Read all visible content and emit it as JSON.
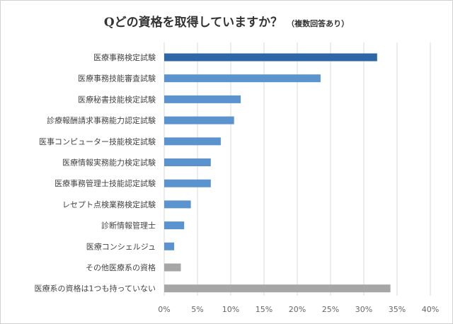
{
  "title": {
    "main": "Qどの資格を取得していますか？",
    "sub": "（複数回答あり）"
  },
  "chart_data": {
    "type": "bar",
    "orientation": "horizontal",
    "title": "Qどの資格を取得していますか？",
    "subtitle": "（複数回答あり）",
    "categories": [
      "医療事務検定試験",
      "医療事務技能審査試験",
      "医療秘書技能検定試験",
      "診療報酬請求事務能力認定試験",
      "医事コンピューター技能検定試験",
      "医療情報実務能力検定試験",
      "医療事務管理士技能認定試験",
      "レセプト点検業務検定試験",
      "診断情報管理士",
      "医療コンシェルジュ",
      "その他医療系の資格",
      "医療系の資格は1つも持っていない"
    ],
    "values": [
      32.0,
      23.5,
      11.5,
      10.5,
      8.5,
      7.0,
      7.0,
      4.0,
      3.0,
      1.5,
      2.5,
      34.0
    ],
    "value_unit": "%",
    "xlim": [
      0,
      40
    ],
    "xticks": [
      "0%",
      "5%",
      "10%",
      "15%",
      "20%",
      "25%",
      "30%",
      "35%",
      "40%"
    ],
    "xtick_values": [
      0,
      5,
      10,
      15,
      20,
      25,
      30,
      35,
      40
    ],
    "grid": "vertical",
    "legend": "none",
    "colors": {
      "highlight": "#2e67a8",
      "standard": "#5b93cf",
      "other": "#a6a6a6",
      "grid": "#d9d9d9"
    },
    "bar_color_keys": [
      "highlight",
      "standard",
      "standard",
      "standard",
      "standard",
      "standard",
      "standard",
      "standard",
      "standard",
      "standard",
      "other",
      "other"
    ]
  }
}
